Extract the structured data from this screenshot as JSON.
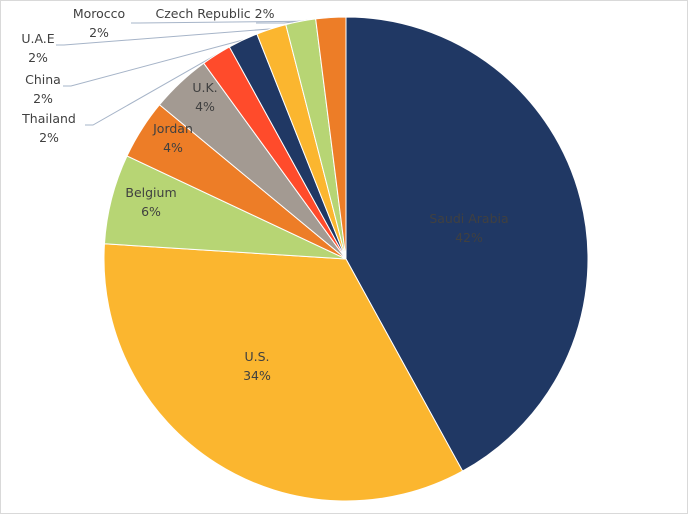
{
  "chart_data": {
    "type": "pie",
    "title": "",
    "start_angle_deg": 0,
    "direction": "clockwise",
    "slices": [
      {
        "label": "Saudi Arabia",
        "value": 42,
        "display": "42%",
        "color": "#203864",
        "label_color": "#ffffff"
      },
      {
        "label": "U.S.",
        "value": 34,
        "display": "34%",
        "color": "#FBB62F",
        "label_color": "#404040"
      },
      {
        "label": "Belgium",
        "value": 6,
        "display": "6%",
        "color": "#B7D574",
        "label_color": "#404040"
      },
      {
        "label": "Jordan",
        "value": 4,
        "display": "4%",
        "color": "#ED7D27",
        "label_color": "#44546A"
      },
      {
        "label": "U.K.",
        "value": 4,
        "display": "4%",
        "color": "#A39A92",
        "label_color": "#44546A"
      },
      {
        "label": "Thailand",
        "value": 2,
        "display": "2%",
        "color": "#FF4B2B",
        "label_color": "#44546A"
      },
      {
        "label": "China",
        "value": 2,
        "display": "2%",
        "color": "#203864",
        "label_color": "#404040"
      },
      {
        "label": "U.A.E",
        "value": 2,
        "display": "2%",
        "color": "#FBB62F",
        "label_color": "#44546A"
      },
      {
        "label": "Morocco",
        "value": 2,
        "display": "2%",
        "color": "#B7D574",
        "label_color": "#44546A"
      },
      {
        "label": "Czech Republic",
        "value": 2,
        "display": "2%",
        "color": "#ED7D27",
        "label_color": "#44546A"
      }
    ],
    "legend": "none"
  }
}
